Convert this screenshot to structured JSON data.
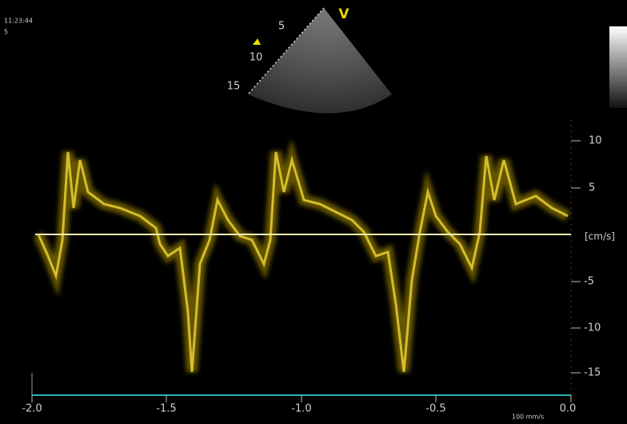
{
  "header": {
    "time": "11:23:44",
    "index": "5"
  },
  "sector": {
    "mode": "V",
    "depths": [
      "5",
      "10",
      "15"
    ]
  },
  "velocity_axis": {
    "unit": "[cm/s]",
    "ticks": [
      "10",
      "5",
      "-5",
      "-10",
      "-15"
    ]
  },
  "time_axis": {
    "ticks": [
      "-2.0",
      "-1.5",
      "-1.0",
      "-0.5",
      "0.0"
    ],
    "sweep": "100 mm/s"
  }
}
